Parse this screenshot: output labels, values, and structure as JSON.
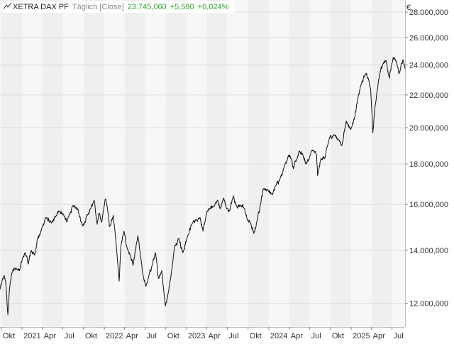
{
  "header": {
    "title": "XETRA DAX PF",
    "frequency": "Täglich [Close]",
    "last_value": "23.745,060",
    "change_abs": "+5,590",
    "change_pct": "+0,024%",
    "positive_color": "#2ea12e"
  },
  "chart_data": {
    "type": "line",
    "currency_label": "€",
    "y_scale": "log",
    "ylim": [
      11200,
      29000
    ],
    "y_ticks": [
      {
        "value": 12000,
        "label": "12.000,000"
      },
      {
        "value": 14000,
        "label": "14.000,000"
      },
      {
        "value": 16000,
        "label": "16.000,000"
      },
      {
        "value": 18000,
        "label": "18.000,000"
      },
      {
        "value": 20000,
        "label": "20.000,000"
      },
      {
        "value": 22000,
        "label": "22.000,000"
      },
      {
        "value": 24000,
        "label": "24.000,000"
      },
      {
        "value": 26000,
        "label": "26.000,000"
      },
      {
        "value": 28000,
        "label": "28.000,000"
      }
    ],
    "x_range": [
      "2020-09-25",
      "2025-08-28"
    ],
    "x_ticks": [
      {
        "date": "2020-10-01",
        "label": "Okt"
      },
      {
        "date": "2021-01-01",
        "label": "2021"
      },
      {
        "date": "2021-04-01",
        "label": "Apr"
      },
      {
        "date": "2021-07-01",
        "label": "Jul"
      },
      {
        "date": "2021-10-01",
        "label": "Okt"
      },
      {
        "date": "2022-01-01",
        "label": "2022"
      },
      {
        "date": "2022-04-01",
        "label": "Apr"
      },
      {
        "date": "2022-07-01",
        "label": "Jul"
      },
      {
        "date": "2022-10-01",
        "label": "Okt"
      },
      {
        "date": "2023-01-01",
        "label": "2023"
      },
      {
        "date": "2023-04-01",
        "label": "Apr"
      },
      {
        "date": "2023-07-01",
        "label": "Jul"
      },
      {
        "date": "2023-10-01",
        "label": "Okt"
      },
      {
        "date": "2024-01-01",
        "label": "2024"
      },
      {
        "date": "2024-04-01",
        "label": "Apr"
      },
      {
        "date": "2024-07-01",
        "label": "Jul"
      },
      {
        "date": "2024-10-01",
        "label": "Okt"
      },
      {
        "date": "2025-01-01",
        "label": "2025"
      },
      {
        "date": "2025-04-01",
        "label": "Apr"
      },
      {
        "date": "2025-07-01",
        "label": "Jul"
      }
    ],
    "grid": true,
    "line_color": "#111111",
    "band_colors": [
      "#f7f7f7",
      "#efefef"
    ],
    "series": [
      {
        "values": [
          [
            "2020-09-25",
            12500
          ],
          [
            "2020-10-02",
            12700
          ],
          [
            "2020-10-12",
            13000
          ],
          [
            "2020-10-20",
            12800
          ],
          [
            "2020-10-30",
            11600
          ],
          [
            "2020-11-06",
            12500
          ],
          [
            "2020-11-16",
            13100
          ],
          [
            "2020-11-27",
            13300
          ],
          [
            "2020-12-08",
            13250
          ],
          [
            "2020-12-21",
            13200
          ],
          [
            "2021-01-04",
            13700
          ],
          [
            "2021-01-15",
            13900
          ],
          [
            "2021-01-29",
            13450
          ],
          [
            "2021-02-10",
            14000
          ],
          [
            "2021-02-26",
            13800
          ],
          [
            "2021-03-10",
            14500
          ],
          [
            "2021-03-22",
            14650
          ],
          [
            "2021-04-01",
            15000
          ],
          [
            "2021-04-16",
            15400
          ],
          [
            "2021-05-12",
            15150
          ],
          [
            "2021-05-31",
            15450
          ],
          [
            "2021-06-15",
            15700
          ],
          [
            "2021-06-28",
            15600
          ],
          [
            "2021-07-08",
            15450
          ],
          [
            "2021-07-19",
            15200
          ],
          [
            "2021-08-02",
            15600
          ],
          [
            "2021-08-13",
            15900
          ],
          [
            "2021-08-30",
            15850
          ],
          [
            "2021-09-10",
            15600
          ],
          [
            "2021-09-20",
            15200
          ],
          [
            "2021-10-04",
            15100
          ],
          [
            "2021-10-15",
            15500
          ],
          [
            "2021-11-01",
            15800
          ],
          [
            "2021-11-17",
            16200
          ],
          [
            "2021-11-30",
            15100
          ],
          [
            "2021-12-10",
            15600
          ],
          [
            "2021-12-20",
            15200
          ],
          [
            "2021-12-31",
            15900
          ],
          [
            "2022-01-05",
            16250
          ],
          [
            "2022-01-14",
            15900
          ],
          [
            "2022-01-24",
            15000
          ],
          [
            "2022-02-10",
            15500
          ],
          [
            "2022-02-24",
            14100
          ],
          [
            "2022-03-08",
            12800
          ],
          [
            "2022-03-16",
            14200
          ],
          [
            "2022-03-29",
            14800
          ],
          [
            "2022-04-12",
            14100
          ],
          [
            "2022-04-26",
            13800
          ],
          [
            "2022-05-09",
            13400
          ],
          [
            "2022-05-30",
            14600
          ],
          [
            "2022-06-10",
            13800
          ],
          [
            "2022-06-20",
            13100
          ],
          [
            "2022-07-05",
            12600
          ],
          [
            "2022-07-15",
            12900
          ],
          [
            "2022-08-01",
            13400
          ],
          [
            "2022-08-16",
            13900
          ],
          [
            "2022-08-29",
            12900
          ],
          [
            "2022-09-13",
            13200
          ],
          [
            "2022-09-29",
            11900
          ],
          [
            "2022-10-10",
            12300
          ],
          [
            "2022-10-24",
            13000
          ],
          [
            "2022-11-10",
            14200
          ],
          [
            "2022-11-28",
            14500
          ],
          [
            "2022-12-16",
            13900
          ],
          [
            "2023-01-06",
            14600
          ],
          [
            "2023-01-27",
            15150
          ],
          [
            "2023-02-10",
            15300
          ],
          [
            "2023-03-02",
            15400
          ],
          [
            "2023-03-15",
            14800
          ],
          [
            "2023-03-31",
            15600
          ],
          [
            "2023-04-14",
            15800
          ],
          [
            "2023-05-02",
            15900
          ],
          [
            "2023-05-19",
            16200
          ],
          [
            "2023-05-31",
            15800
          ],
          [
            "2023-06-15",
            16300
          ],
          [
            "2023-06-28",
            15800
          ],
          [
            "2023-07-11",
            15700
          ],
          [
            "2023-07-28",
            16400
          ],
          [
            "2023-08-11",
            15900
          ],
          [
            "2023-08-30",
            15950
          ],
          [
            "2023-09-15",
            15800
          ],
          [
            "2023-09-28",
            15300
          ],
          [
            "2023-10-10",
            15200
          ],
          [
            "2023-10-27",
            14700
          ],
          [
            "2023-11-10",
            15250
          ],
          [
            "2023-11-24",
            15950
          ],
          [
            "2023-12-08",
            16750
          ],
          [
            "2023-12-27",
            16700
          ],
          [
            "2024-01-17",
            16450
          ],
          [
            "2024-02-01",
            16900
          ],
          [
            "2024-02-22",
            17300
          ],
          [
            "2024-03-08",
            17800
          ],
          [
            "2024-03-28",
            18450
          ],
          [
            "2024-04-09",
            18300
          ],
          [
            "2024-04-19",
            17750
          ],
          [
            "2024-05-03",
            18200
          ],
          [
            "2024-05-15",
            18700
          ],
          [
            "2024-05-31",
            18500
          ],
          [
            "2024-06-14",
            18000
          ],
          [
            "2024-06-28",
            18250
          ],
          [
            "2024-07-12",
            18750
          ],
          [
            "2024-07-31",
            18500
          ],
          [
            "2024-08-05",
            17400
          ],
          [
            "2024-08-20",
            18300
          ],
          [
            "2024-09-06",
            18300
          ],
          [
            "2024-09-27",
            19450
          ],
          [
            "2024-10-17",
            19600
          ],
          [
            "2024-11-07",
            19300
          ],
          [
            "2024-11-21",
            19000
          ],
          [
            "2024-12-10",
            20400
          ],
          [
            "2024-12-30",
            19900
          ],
          [
            "2025-01-15",
            20550
          ],
          [
            "2025-01-30",
            21700
          ],
          [
            "2025-02-12",
            22600
          ],
          [
            "2025-03-06",
            23400
          ],
          [
            "2025-03-18",
            23100
          ],
          [
            "2025-03-28",
            22400
          ],
          [
            "2025-04-04",
            20600
          ],
          [
            "2025-04-07",
            19700
          ],
          [
            "2025-04-14",
            20900
          ],
          [
            "2025-04-25",
            22200
          ],
          [
            "2025-05-09",
            23450
          ],
          [
            "2025-05-22",
            24100
          ],
          [
            "2025-06-05",
            24300
          ],
          [
            "2025-06-19",
            23100
          ],
          [
            "2025-06-30",
            24100
          ],
          [
            "2025-07-10",
            24550
          ],
          [
            "2025-07-21",
            24250
          ],
          [
            "2025-08-01",
            23400
          ],
          [
            "2025-08-12",
            24150
          ],
          [
            "2025-08-21",
            24300
          ],
          [
            "2025-08-28",
            23745
          ]
        ]
      }
    ]
  }
}
